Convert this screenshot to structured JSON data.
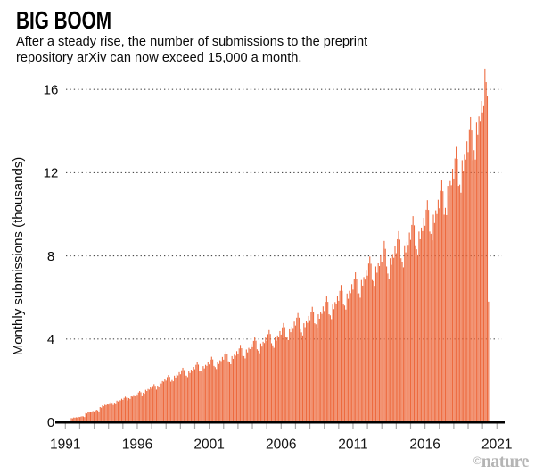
{
  "header": {
    "title": "BIG BOOM",
    "subtitle_lines": [
      "After a steady rise, the number of submissions to the preprint",
      "repository arXiv can now exceed 15,000 a month."
    ]
  },
  "footer": {
    "credit_symbol": "©",
    "credit_name": "nature"
  },
  "chart_data": {
    "type": "bar",
    "title": "BIG BOOM",
    "subtitle": "After a steady rise, the number of submissions to the preprint repository arXiv can now exceed 15,000 a month.",
    "xlabel": "",
    "ylabel": "Monthly submissions (thousands)",
    "x_ticks": [
      "1991",
      "1996",
      "2001",
      "2006",
      "2011",
      "2016",
      "2021"
    ],
    "x_range_years": [
      1991,
      2021
    ],
    "minor_x_tick_every_years": 1,
    "y_ticks": [
      0,
      4,
      8,
      12,
      16
    ],
    "ylim": [
      0,
      17.2
    ],
    "grid": "dotted horizontal lines at 4, 8, 12, 16 drawn under bars",
    "legend": "none",
    "bar_color": "#ED6A3E",
    "axis_color": "#000000",
    "tick_color": "#a8a8a8",
    "grid_color": "#4a4a4a",
    "bar_unit": "one bar per month, sequential from the 1991 tick; final short bar is a partial month",
    "series": [
      {
        "name": "Monthly submissions (thousands)",
        "values": [
          0.03,
          0.06,
          0.08,
          0.07,
          0.07,
          0.2,
          0.19,
          0.23,
          0.22,
          0.24,
          0.23,
          0.26,
          0.25,
          0.27,
          0.29,
          0.28,
          0.25,
          0.44,
          0.42,
          0.49,
          0.47,
          0.51,
          0.5,
          0.54,
          0.52,
          0.56,
          0.6,
          0.57,
          0.51,
          0.73,
          0.7,
          0.81,
          0.77,
          0.84,
          0.82,
          0.89,
          0.85,
          0.92,
          0.97,
          0.93,
          0.83,
          0.94,
          0.91,
          1.04,
          1.0,
          1.07,
          1.05,
          1.13,
          1.08,
          1.17,
          1.23,
          1.18,
          1.05,
          1.16,
          1.12,
          1.28,
          1.23,
          1.31,
          1.29,
          1.38,
          1.32,
          1.43,
          1.5,
          1.44,
          1.29,
          1.42,
          1.37,
          1.56,
          1.5,
          1.6,
          1.57,
          1.68,
          1.61,
          1.74,
          1.83,
          1.75,
          1.57,
          1.76,
          1.7,
          1.94,
          1.86,
          1.98,
          1.95,
          2.09,
          2.0,
          2.17,
          2.27,
          2.18,
          1.95,
          2.03,
          1.97,
          2.24,
          2.15,
          2.29,
          2.25,
          2.41,
          2.31,
          2.5,
          2.62,
          2.51,
          2.25,
          2.24,
          2.17,
          2.47,
          2.37,
          2.53,
          2.49,
          2.66,
          2.55,
          2.76,
          2.89,
          2.77,
          2.48,
          2.45,
          2.37,
          2.7,
          2.59,
          2.76,
          2.71,
          2.9,
          2.78,
          3.01,
          3.15,
          3.02,
          2.71,
          2.65,
          2.56,
          2.92,
          2.8,
          2.98,
          2.94,
          3.14,
          3.01,
          3.26,
          3.41,
          3.27,
          2.93,
          2.89,
          2.79,
          3.18,
          3.05,
          3.25,
          3.2,
          3.42,
          3.28,
          3.55,
          3.72,
          3.56,
          3.19,
          3.18,
          3.07,
          3.5,
          3.36,
          3.58,
          3.52,
          3.76,
          3.61,
          3.91,
          4.09,
          3.92,
          3.51,
          3.44,
          3.32,
          3.79,
          3.64,
          3.87,
          3.81,
          4.07,
          3.91,
          4.23,
          4.43,
          4.24,
          3.8,
          3.7,
          3.58,
          4.08,
          3.92,
          4.17,
          4.1,
          4.38,
          4.21,
          4.56,
          4.77,
          4.57,
          4.09,
          4.09,
          3.95,
          4.51,
          4.33,
          4.6,
          4.53,
          4.84,
          4.65,
          5.03,
          5.25,
          5.03,
          4.51,
          4.32,
          4.17,
          4.76,
          4.57,
          4.86,
          4.78,
          5.11,
          4.91,
          5.31,
          5.55,
          5.31,
          4.76,
          4.71,
          4.55,
          5.19,
          4.98,
          5.3,
          5.21,
          5.57,
          5.35,
          5.79,
          6.05,
          5.79,
          5.19,
          5.14,
          4.96,
          5.66,
          5.44,
          5.78,
          5.69,
          6.08,
          5.84,
          6.32,
          6.6,
          6.32,
          5.66,
          5.61,
          5.42,
          6.19,
          5.94,
          6.32,
          6.21,
          6.64,
          6.38,
          6.9,
          7.21,
          6.9,
          6.19,
          6.2,
          5.99,
          6.84,
          6.57,
          6.98,
          6.86,
          7.33,
          7.05,
          7.63,
          7.97,
          7.62,
          6.84,
          6.79,
          6.56,
          7.49,
          7.19,
          7.64,
          7.51,
          8.03,
          7.72,
          8.35,
          8.72,
          8.34,
          7.49,
          7.15,
          6.91,
          7.89,
          7.57,
          8.05,
          7.91,
          8.46,
          8.13,
          8.8,
          9.19,
          8.78,
          7.89,
          7.72,
          7.45,
          8.51,
          8.17,
          8.68,
          8.53,
          9.12,
          8.77,
          9.49,
          9.91,
          9.47,
          8.51,
          8.32,
          8.03,
          9.17,
          8.8,
          9.36,
          9.19,
          9.83,
          9.45,
          10.22,
          10.68,
          10.21,
          9.17,
          9.06,
          8.75,
          9.98,
          9.58,
          10.19,
          10.01,
          10.7,
          10.29,
          11.13,
          11.63,
          11.11,
          9.98,
          10.31,
          9.96,
          11.37,
          10.91,
          11.6,
          11.4,
          12.19,
          11.72,
          12.68,
          13.24,
          12.66,
          11.37,
          11.43,
          11.04,
          12.6,
          12.09,
          12.86,
          12.63,
          13.51,
          12.99,
          14.05,
          14.68,
          14.03,
          12.6,
          13.08,
          12.63,
          14.41,
          13.83,
          14.71,
          14.45,
          15.45,
          14.86,
          15.2,
          17.0,
          16.35,
          15.7,
          5.8
        ]
      }
    ]
  }
}
